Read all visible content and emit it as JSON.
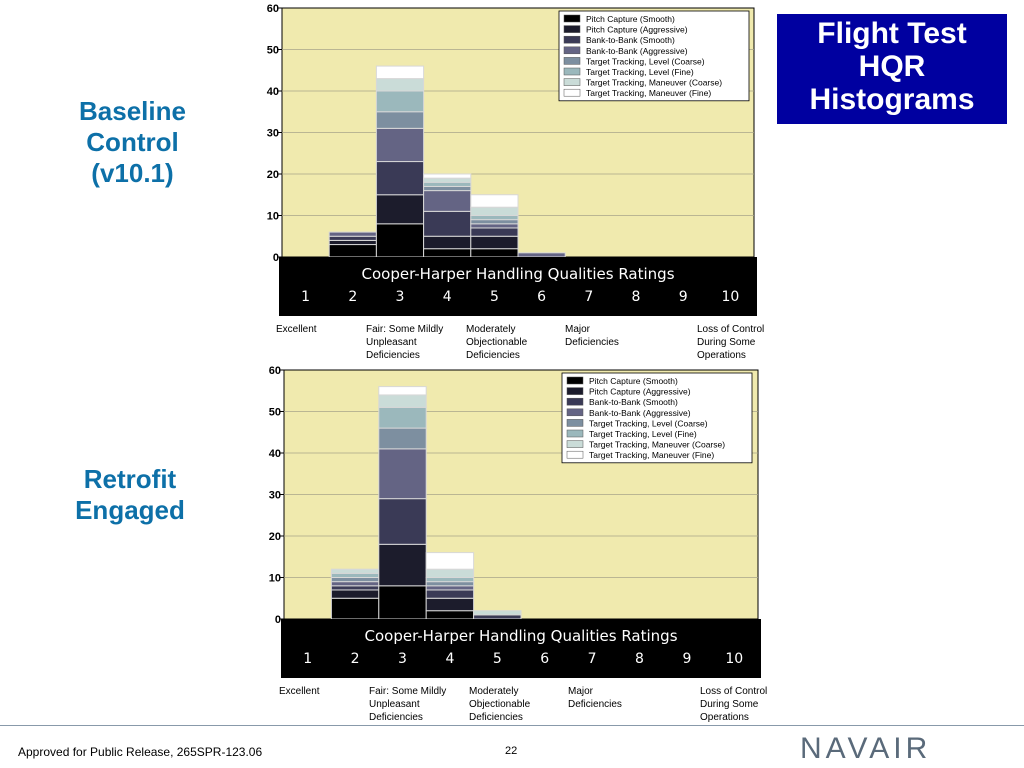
{
  "title": "Flight Test HQR Histograms",
  "title_lines": [
    "Flight Test",
    "HQR",
    "Histograms"
  ],
  "panel_labels": [
    [
      "Baseline",
      "Control",
      "(v10.1)"
    ],
    [
      "Retrofit",
      "Engaged"
    ]
  ],
  "footer": {
    "release": "Approved for Public Release, 265SPR-123.06",
    "page": "22",
    "logo": "NAVAIR"
  },
  "colors": {
    "plot_background": "#f0eaae",
    "axis_band": "#000000",
    "title_box": "#0000a0",
    "panel_label": "#0d70a8",
    "series": [
      "#000000",
      "#1c1c2c",
      "#3a3a56",
      "#646484",
      "#7d8fa0",
      "#9bb8bc",
      "#cadcd8",
      "#ffffff"
    ]
  },
  "chart_data": [
    {
      "type": "bar",
      "stacked": true,
      "panel": "Baseline Control (v10.1)",
      "xlabel": "Cooper-Harper Handling Qualities Ratings",
      "ylabel": "",
      "ylim": [
        0,
        60
      ],
      "yticks": [
        0,
        10,
        20,
        30,
        40,
        50,
        60
      ],
      "grid": true,
      "legend_position": "top-right",
      "categories": [
        "1",
        "2",
        "3",
        "4",
        "5",
        "6",
        "7",
        "8",
        "9",
        "10"
      ],
      "category_groups": [
        {
          "label": "Excellent",
          "at": 1
        },
        {
          "label": "Fair: Some Mildly Unpleasant Deficiencies",
          "at": 3
        },
        {
          "label": "Moderately Objectionable Deficiencies",
          "at": 5
        },
        {
          "label": "Major Deficiencies",
          "at": 7
        },
        {
          "label": "Loss of Control During Some Operations",
          "at": 9
        }
      ],
      "series": [
        {
          "name": "Pitch Capture (Smooth)",
          "values": [
            0,
            3,
            8,
            2,
            2,
            0,
            0,
            0,
            0,
            0
          ]
        },
        {
          "name": "Pitch Capture (Aggressive)",
          "values": [
            0,
            1,
            7,
            3,
            3,
            0,
            0,
            0,
            0,
            0
          ]
        },
        {
          "name": "Bank-to-Bank (Smooth)",
          "values": [
            0,
            1,
            8,
            6,
            2,
            0,
            0,
            0,
            0,
            0
          ]
        },
        {
          "name": "Bank-to-Bank (Aggressive)",
          "values": [
            0,
            1,
            8,
            5,
            1,
            1,
            0,
            0,
            0,
            0
          ]
        },
        {
          "name": "Target Tracking, Level (Coarse)",
          "values": [
            0,
            0,
            4,
            1,
            1,
            0,
            0,
            0,
            0,
            0
          ]
        },
        {
          "name": "Target Tracking, Level (Fine)",
          "values": [
            0,
            0,
            5,
            1,
            1,
            0,
            0,
            0,
            0,
            0
          ]
        },
        {
          "name": "Target Tracking, Maneuver (Coarse)",
          "values": [
            0,
            0,
            3,
            1,
            2,
            0,
            0,
            0,
            0,
            0
          ]
        },
        {
          "name": "Target Tracking, Maneuver (Fine)",
          "values": [
            0,
            0,
            3,
            1,
            3,
            0,
            0,
            0,
            0,
            0
          ]
        }
      ]
    },
    {
      "type": "bar",
      "stacked": true,
      "panel": "Retrofit Engaged",
      "xlabel": "Cooper-Harper Handling Qualities Ratings",
      "ylabel": "",
      "ylim": [
        0,
        60
      ],
      "yticks": [
        0,
        10,
        20,
        30,
        40,
        50,
        60
      ],
      "grid": true,
      "legend_position": "top-right",
      "categories": [
        "1",
        "2",
        "3",
        "4",
        "5",
        "6",
        "7",
        "8",
        "9",
        "10"
      ],
      "category_groups": [
        {
          "label": "Excellent",
          "at": 1
        },
        {
          "label": "Fair: Some Mildly Unpleasant Deficiencies",
          "at": 3
        },
        {
          "label": "Moderately Objectionable Deficiencies",
          "at": 5
        },
        {
          "label": "Major Deficiencies",
          "at": 7
        },
        {
          "label": "Loss of Control During Some Operations",
          "at": 9
        }
      ],
      "series": [
        {
          "name": "Pitch Capture (Smooth)",
          "values": [
            0,
            5,
            8,
            2,
            0,
            0,
            0,
            0,
            0,
            0
          ]
        },
        {
          "name": "Pitch Capture (Aggressive)",
          "values": [
            0,
            2,
            10,
            3,
            0,
            0,
            0,
            0,
            0,
            0
          ]
        },
        {
          "name": "Bank-to-Bank (Smooth)",
          "values": [
            0,
            1,
            11,
            2,
            1,
            0,
            0,
            0,
            0,
            0
          ]
        },
        {
          "name": "Bank-to-Bank (Aggressive)",
          "values": [
            0,
            1,
            12,
            1,
            0,
            0,
            0,
            0,
            0,
            0
          ]
        },
        {
          "name": "Target Tracking, Level (Coarse)",
          "values": [
            0,
            1,
            5,
            1,
            0,
            0,
            0,
            0,
            0,
            0
          ]
        },
        {
          "name": "Target Tracking, Level (Fine)",
          "values": [
            0,
            1,
            5,
            1,
            0,
            0,
            0,
            0,
            0,
            0
          ]
        },
        {
          "name": "Target Tracking, Maneuver (Coarse)",
          "values": [
            0,
            1,
            3,
            2,
            1,
            0,
            0,
            0,
            0,
            0
          ]
        },
        {
          "name": "Target Tracking, Maneuver (Fine)",
          "values": [
            0,
            0,
            2,
            4,
            0,
            0,
            0,
            0,
            0,
            0
          ]
        }
      ]
    }
  ]
}
